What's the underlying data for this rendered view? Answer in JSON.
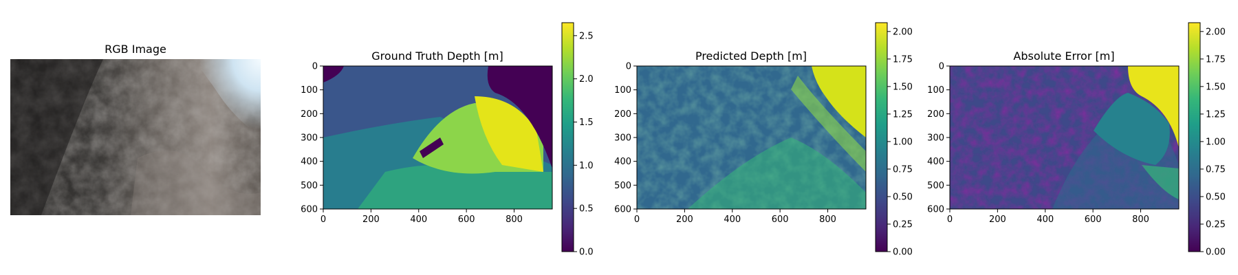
{
  "colors": {
    "colormap": "viridis",
    "viridis_stops": [
      "#440154",
      "#482878",
      "#3e4989",
      "#31688e",
      "#26828e",
      "#1f9e89",
      "#35b779",
      "#6ece58",
      "#b5de2b",
      "#fde725"
    ]
  },
  "chart_data": [
    {
      "type": "image",
      "title": "RGB Image",
      "axes_visible": false,
      "content": "underwater rock photograph"
    },
    {
      "type": "heatmap",
      "title": "Ground Truth Depth [m]",
      "xticks": [
        "0",
        "200",
        "400",
        "600",
        "800"
      ],
      "yticks": [
        "0",
        "100",
        "200",
        "300",
        "400",
        "500",
        "600"
      ],
      "x_range": [
        0,
        960
      ],
      "y_range": [
        0,
        600
      ],
      "colorbar": {
        "min": 0.0,
        "max": 2.65,
        "ticks": [
          "0.0",
          "0.5",
          "1.0",
          "1.5",
          "2.0",
          "2.5"
        ],
        "tick_values": [
          0,
          0.5,
          1.0,
          1.5,
          2.0,
          2.5
        ]
      }
    },
    {
      "type": "heatmap",
      "title": "Predicted Depth [m]",
      "xticks": [
        "0",
        "200",
        "400",
        "600",
        "800"
      ],
      "yticks": [
        "0",
        "100",
        "200",
        "300",
        "400",
        "500",
        "600"
      ],
      "x_range": [
        0,
        960
      ],
      "y_range": [
        0,
        600
      ],
      "colorbar": {
        "min": 0.0,
        "max": 2.08,
        "ticks": [
          "0.00",
          "0.25",
          "0.50",
          "0.75",
          "1.00",
          "1.25",
          "1.50",
          "1.75",
          "2.00"
        ],
        "tick_values": [
          0,
          0.25,
          0.5,
          0.75,
          1.0,
          1.25,
          1.5,
          1.75,
          2.0
        ]
      }
    },
    {
      "type": "heatmap",
      "title": "Absolute Error [m]",
      "xticks": [
        "0",
        "200",
        "400",
        "600",
        "800"
      ],
      "yticks": [
        "0",
        "100",
        "200",
        "300",
        "400",
        "500",
        "600"
      ],
      "x_range": [
        0,
        960
      ],
      "y_range": [
        0,
        600
      ],
      "colorbar": {
        "min": 0.0,
        "max": 2.08,
        "ticks": [
          "0.00",
          "0.25",
          "0.50",
          "0.75",
          "1.00",
          "1.25",
          "1.50",
          "1.75",
          "2.00"
        ],
        "tick_values": [
          0,
          0.25,
          0.5,
          0.75,
          1.0,
          1.25,
          1.5,
          1.75,
          2.0
        ]
      }
    }
  ]
}
